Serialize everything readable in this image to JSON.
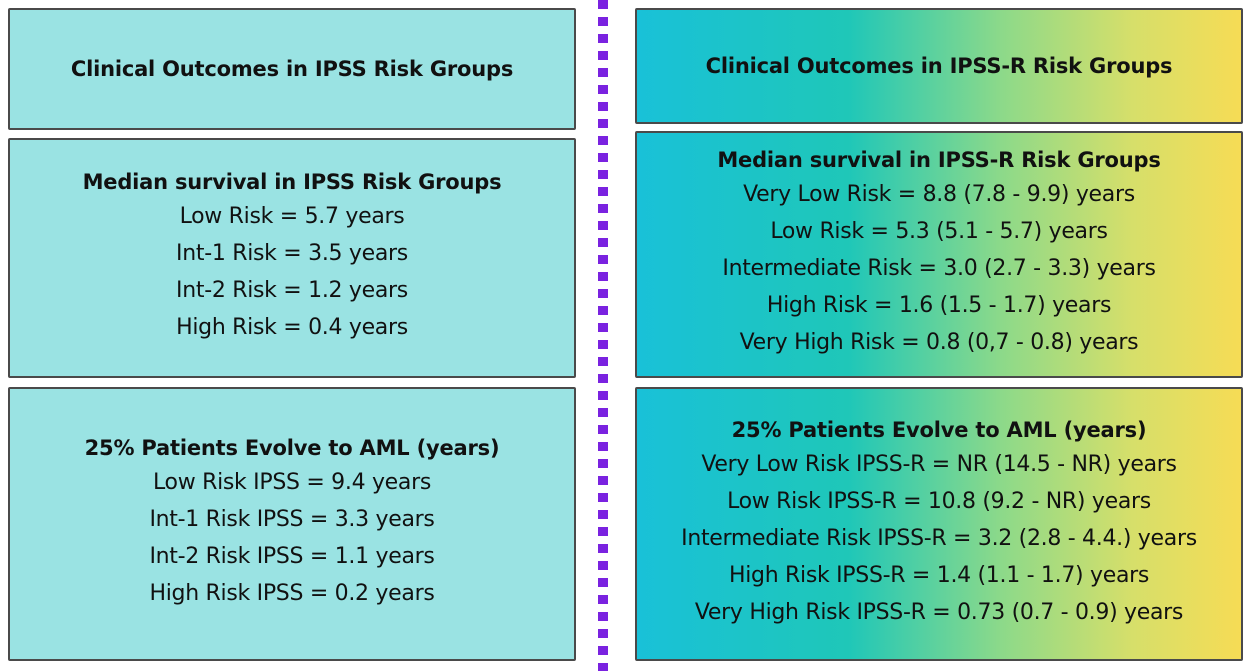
{
  "left": {
    "header": "Clinical Outcomes in IPSS Risk Groups",
    "survival": {
      "title": "Median survival in IPSS Risk Groups",
      "lines": [
        "Low Risk  = 5.7 years",
        "Int-1 Risk = 3.5 years",
        "Int-2 Risk = 1.2 years",
        "High Risk = 0.4 years"
      ]
    },
    "aml": {
      "title": "25% Patients Evolve to AML (years)",
      "lines": [
        "Low Risk IPSS  = 9.4 years",
        "Int-1 Risk IPSS = 3.3 years",
        "Int-2 Risk IPSS = 1.1 years",
        "High Risk IPSS = 0.2 years"
      ]
    }
  },
  "right": {
    "header": "Clinical Outcomes in IPSS-R Risk Groups",
    "survival": {
      "title": "Median survival in IPSS-R Risk Groups",
      "lines": [
        "Very Low Risk  = 8.8 (7.8 - 9.9) years",
        "Low Risk = 5.3 (5.1 - 5.7) years",
        "Intermediate Risk = 3.0 (2.7 - 3.3) years",
        "High Risk = 1.6 (1.5 - 1.7) years",
        "Very High Risk = 0.8 (0,7 - 0.8) years"
      ]
    },
    "aml": {
      "title": "25% Patients Evolve to AML (years)",
      "lines": [
        "Very Low Risk IPSS-R  = NR (14.5 - NR) years",
        "Low Risk IPSS-R = 10.8 (9.2 - NR) years",
        "Intermediate Risk IPSS-R = 3.2 (2.8 - 4.4.) years",
        "High Risk IPSS-R = 1.4 (1.1 - 1.7) years",
        "Very High Risk IPSS-R = 0.73 (0.7 - 0.9) years"
      ]
    }
  },
  "colors": {
    "left_panel": "#9ae3e3",
    "right_gradient_start": "#19c1d8",
    "right_gradient_end": "#f6dc55",
    "divider": "#7a22e0",
    "border": "#4a4a4a"
  }
}
